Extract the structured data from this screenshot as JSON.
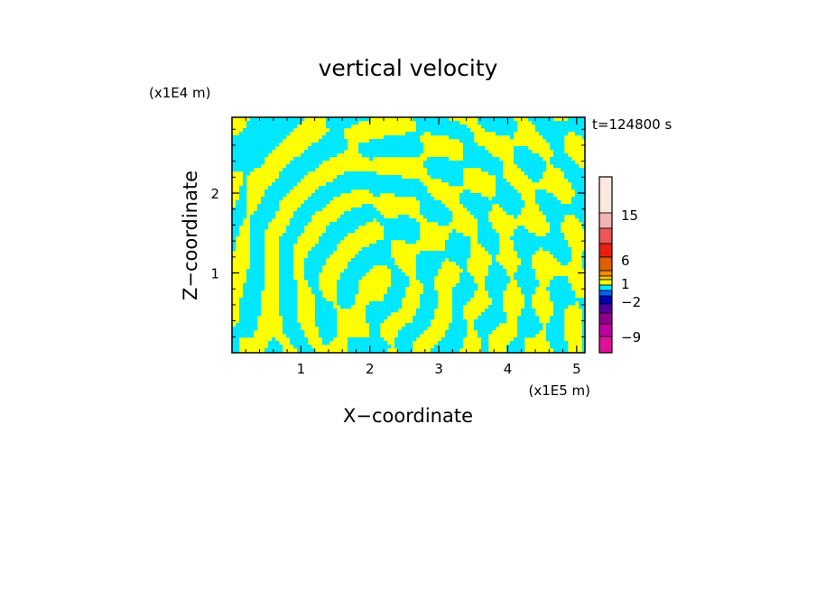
{
  "chart_data": {
    "type": "heatmap",
    "title": "vertical velocity",
    "xlabel": "X−coordinate",
    "ylabel": "Z−coordinate",
    "x_unit": "(x1E5 m)",
    "y_unit": "(x1E4 m)",
    "time_label": "t=124800 s",
    "xlim": [
      0,
      5.12
    ],
    "ylim": [
      0,
      2.95
    ],
    "x_ticks": [
      "1",
      "2",
      "3",
      "4",
      "5"
    ],
    "x_tick_values": [
      1,
      2,
      3,
      4,
      5
    ],
    "y_ticks": [
      "1",
      "2"
    ],
    "y_tick_values": [
      1,
      2
    ],
    "colorbar": {
      "labels": [
        "15",
        "6",
        "1",
        "−2",
        "−9"
      ],
      "levels_top_to_bottom": [
        "#fde8e0",
        "#f4b3b3",
        "#ec5858",
        "#e81e10",
        "#e06000",
        "#f08c00",
        "#f7c700",
        "#ffff00",
        "#00e8ff",
        "#0060ff",
        "#0000b0",
        "#5000a0",
        "#900090",
        "#c000a0",
        "#e0109a"
      ]
    },
    "field": {
      "positive_color": "#ffff00",
      "negative_color": "#00e8ff"
    }
  }
}
